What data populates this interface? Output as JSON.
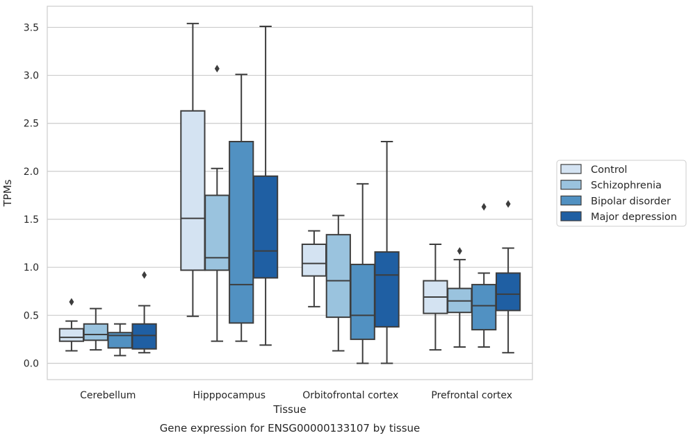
{
  "chart_data": {
    "type": "boxplot",
    "xlabel": "Tissue",
    "ylabel": "TPMs",
    "caption": "Gene expression for ENSG00000133107 by tissue",
    "ylim": [
      -0.17,
      3.72
    ],
    "yticks": [
      0.0,
      0.5,
      1.0,
      1.5,
      2.0,
      2.5,
      3.0,
      3.5
    ],
    "ytick_labels": [
      "0.0",
      "0.5",
      "1.0",
      "1.5",
      "2.0",
      "2.5",
      "3.0",
      "3.5"
    ],
    "grid": "horizontal",
    "legend_position": "right",
    "categories": [
      "Cerebellum",
      "Hipppocampus",
      "Orbitofrontal cortex",
      "Prefrontal cortex"
    ],
    "series": [
      {
        "name": "Control",
        "color": "#d4e3f2",
        "boxes": [
          {
            "whislo": 0.13,
            "q1": 0.23,
            "med": 0.27,
            "q3": 0.36,
            "whishi": 0.44,
            "fliers": [
              0.64
            ]
          },
          {
            "whislo": 0.49,
            "q1": 0.97,
            "med": 1.51,
            "q3": 2.63,
            "whishi": 3.54,
            "fliers": []
          },
          {
            "whislo": 0.59,
            "q1": 0.91,
            "med": 1.04,
            "q3": 1.24,
            "whishi": 1.38,
            "fliers": []
          },
          {
            "whislo": 0.14,
            "q1": 0.52,
            "med": 0.69,
            "q3": 0.86,
            "whishi": 1.24,
            "fliers": []
          }
        ]
      },
      {
        "name": "Schizophrenia",
        "color": "#9ac3de",
        "boxes": [
          {
            "whislo": 0.14,
            "q1": 0.24,
            "med": 0.3,
            "q3": 0.41,
            "whishi": 0.57,
            "fliers": []
          },
          {
            "whislo": 0.23,
            "q1": 0.97,
            "med": 1.1,
            "q3": 1.75,
            "whishi": 2.03,
            "fliers": [
              3.07
            ]
          },
          {
            "whislo": 0.13,
            "q1": 0.48,
            "med": 0.86,
            "q3": 1.34,
            "whishi": 1.54,
            "fliers": []
          },
          {
            "whislo": 0.17,
            "q1": 0.53,
            "med": 0.65,
            "q3": 0.78,
            "whishi": 1.08,
            "fliers": [
              1.17
            ]
          }
        ]
      },
      {
        "name": "Bipolar disorder",
        "color": "#5191c2",
        "boxes": [
          {
            "whislo": 0.08,
            "q1": 0.16,
            "med": 0.29,
            "q3": 0.32,
            "whishi": 0.41,
            "fliers": []
          },
          {
            "whislo": 0.23,
            "q1": 0.42,
            "med": 0.82,
            "q3": 2.31,
            "whishi": 3.01,
            "fliers": []
          },
          {
            "whislo": 0.0,
            "q1": 0.25,
            "med": 0.5,
            "q3": 1.03,
            "whishi": 1.87,
            "fliers": []
          },
          {
            "whislo": 0.17,
            "q1": 0.35,
            "med": 0.6,
            "q3": 0.82,
            "whishi": 0.94,
            "fliers": [
              1.63
            ]
          }
        ]
      },
      {
        "name": "Major depression",
        "color": "#1f5fa3",
        "boxes": [
          {
            "whislo": 0.11,
            "q1": 0.15,
            "med": 0.29,
            "q3": 0.41,
            "whishi": 0.6,
            "fliers": [
              0.92
            ]
          },
          {
            "whislo": 0.19,
            "q1": 0.89,
            "med": 1.17,
            "q3": 1.95,
            "whishi": 3.51,
            "fliers": []
          },
          {
            "whislo": 0.0,
            "q1": 0.38,
            "med": 0.92,
            "q3": 1.16,
            "whishi": 2.31,
            "fliers": []
          },
          {
            "whislo": 0.11,
            "q1": 0.55,
            "med": 0.72,
            "q3": 0.94,
            "whishi": 1.2,
            "fliers": [
              1.66
            ]
          }
        ]
      }
    ]
  }
}
